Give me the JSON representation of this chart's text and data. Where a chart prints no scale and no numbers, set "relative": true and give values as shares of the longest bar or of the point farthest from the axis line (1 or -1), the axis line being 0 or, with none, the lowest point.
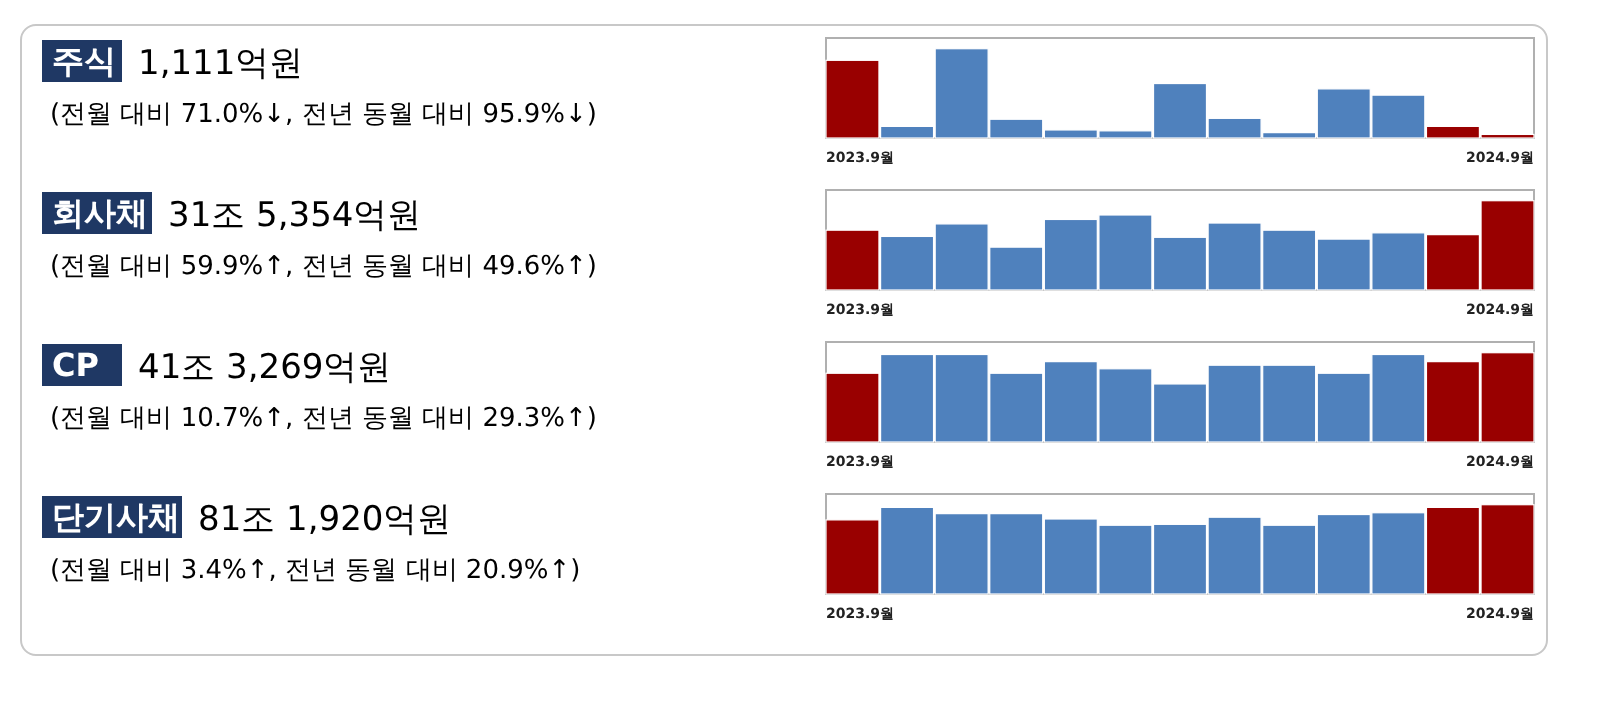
{
  "chart_data": [
    {
      "type": "bar",
      "annotations": [
        "주식",
        "1,111억원",
        "(전월 대비 71.0%↓, 전년 동월 대비 95.9%↓)"
      ],
      "relative": true,
      "categories": [
        "2023.9월",
        null,
        null,
        null,
        null,
        null,
        null,
        null,
        null,
        null,
        null,
        null,
        "2024.9월"
      ],
      "values": [
        0.87,
        0.13,
        1,
        0.21,
        0.09,
        0.08,
        0.61,
        0.22,
        0.06,
        0.55,
        0.48,
        0.13,
        0.04
      ],
      "colors": [
        "#990000",
        "#4f81bd",
        "#4f81bd",
        "#4f81bd",
        "#4f81bd",
        "#4f81bd",
        "#4f81bd",
        "#4f81bd",
        "#4f81bd",
        "#4f81bd",
        "#4f81bd",
        "#990000",
        "#990000"
      ]
    },
    {
      "type": "bar",
      "annotations": [
        "회사채",
        "31조 5,354억원",
        "(전월 대비 59.9%↑, 전년 동월 대비 49.6%↑)"
      ],
      "relative": true,
      "categories": [
        "2023.9월",
        null,
        null,
        null,
        null,
        null,
        null,
        null,
        null,
        null,
        null,
        null,
        "2024.9월"
      ],
      "values": [
        0.67,
        0.6,
        0.74,
        0.48,
        0.79,
        0.84,
        0.59,
        0.75,
        0.67,
        0.57,
        0.64,
        0.62,
        1
      ],
      "colors": [
        "#990000",
        "#4f81bd",
        "#4f81bd",
        "#4f81bd",
        "#4f81bd",
        "#4f81bd",
        "#4f81bd",
        "#4f81bd",
        "#4f81bd",
        "#4f81bd",
        "#4f81bd",
        "#990000",
        "#990000"
      ]
    },
    {
      "type": "bar",
      "annotations": [
        "CP",
        "41조 3,269억원",
        "(전월 대비 10.7%↑, 전년 동월 대비 29.3%↑)"
      ],
      "relative": true,
      "categories": [
        "2023.9월",
        null,
        null,
        null,
        null,
        null,
        null,
        null,
        null,
        null,
        null,
        null,
        "2024.9월"
      ],
      "values": [
        0.77,
        0.98,
        0.98,
        0.77,
        0.9,
        0.82,
        0.65,
        0.86,
        0.86,
        0.77,
        0.98,
        0.9,
        1
      ],
      "colors": [
        "#990000",
        "#4f81bd",
        "#4f81bd",
        "#4f81bd",
        "#4f81bd",
        "#4f81bd",
        "#4f81bd",
        "#4f81bd",
        "#4f81bd",
        "#4f81bd",
        "#4f81bd",
        "#990000",
        "#990000"
      ]
    },
    {
      "type": "bar",
      "annotations": [
        "단기사채",
        "81조 1,920억원",
        "(전월 대비 3.4%↑, 전년 동월 대비 20.9%↑)"
      ],
      "relative": true,
      "categories": [
        "2023.9월",
        null,
        null,
        null,
        null,
        null,
        null,
        null,
        null,
        null,
        null,
        null,
        "2024.9월"
      ],
      "values": [
        0.83,
        0.97,
        0.9,
        0.9,
        0.84,
        0.77,
        0.78,
        0.86,
        0.77,
        0.89,
        0.91,
        0.97,
        1
      ],
      "colors": [
        "#990000",
        "#4f81bd",
        "#4f81bd",
        "#4f81bd",
        "#4f81bd",
        "#4f81bd",
        "#4f81bd",
        "#4f81bd",
        "#4f81bd",
        "#4f81bd",
        "#4f81bd",
        "#990000",
        "#990000"
      ]
    }
  ]
}
